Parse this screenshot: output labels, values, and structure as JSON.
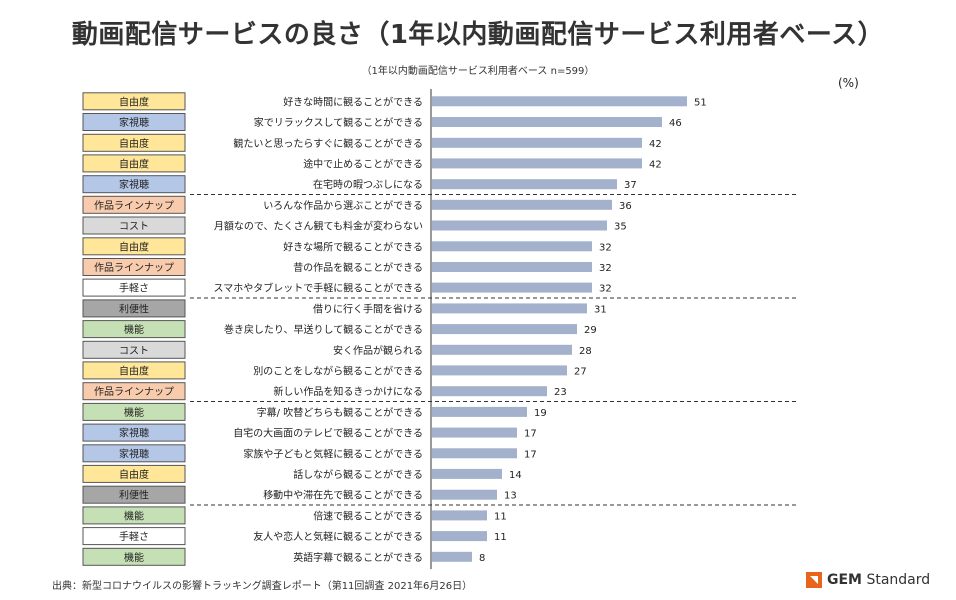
{
  "header": {
    "title": "動画配信サービスの良さ（1年以内動画配信サービス利用者ベース）",
    "subtitle": "（1年以内動画配信サービス利用者ベース n=599）",
    "unit": "(%)"
  },
  "footer": {
    "source": "出典：新型コロナウイルスの影響トラッキング調査レポート（第11回調査 2021年6月26日）",
    "logo_bold": "GEM",
    "logo_rest": " Standard"
  },
  "colors": {
    "bar": "#a3b1cd",
    "自由度": "#ffe699",
    "家視聴": "#b4c7e7",
    "作品ラインナップ": "#f8cbad",
    "コスト": "#d9d9d9",
    "手軽さ": "#ffffff",
    "利便性": "#a6a6a6",
    "機能": "#c5e0b4"
  },
  "chart_data": {
    "type": "bar",
    "orientation": "horizontal",
    "unit": "%",
    "xlim": [
      0,
      60
    ],
    "grid": false,
    "rows": [
      {
        "category": "自由度",
        "label": "好きな時間に観ることができる",
        "value": 51
      },
      {
        "category": "家視聴",
        "label": "家でリラックスして観ることができる",
        "value": 46
      },
      {
        "category": "自由度",
        "label": "観たいと思ったらすぐに観ることができる",
        "value": 42
      },
      {
        "category": "自由度",
        "label": "途中で止めることができる",
        "value": 42
      },
      {
        "category": "家視聴",
        "label": "在宅時の暇つぶしになる",
        "value": 37
      },
      {
        "category": "作品ラインナップ",
        "label": "いろんな作品から選ぶことができる",
        "value": 36
      },
      {
        "category": "コスト",
        "label": "月額なので、たくさん観ても料金が変わらない",
        "value": 35
      },
      {
        "category": "自由度",
        "label": "好きな場所で観ることができる",
        "value": 32
      },
      {
        "category": "作品ラインナップ",
        "label": "昔の作品を観ることができる",
        "value": 32
      },
      {
        "category": "手軽さ",
        "label": "スマホやタブレットで手軽に観ることができる",
        "value": 32
      },
      {
        "category": "利便性",
        "label": "借りに行く手間を省ける",
        "value": 31
      },
      {
        "category": "機能",
        "label": "巻き戻したり、早送りして観ることができる",
        "value": 29
      },
      {
        "category": "コスト",
        "label": "安く作品が観られる",
        "value": 28
      },
      {
        "category": "自由度",
        "label": "別のことをしながら観ることができる",
        "value": 27
      },
      {
        "category": "作品ラインナップ",
        "label": "新しい作品を知るきっかけになる",
        "value": 23
      },
      {
        "category": "機能",
        "label": "字幕/ 吹替どちらも観ることができる",
        "value": 19
      },
      {
        "category": "家視聴",
        "label": "自宅の大画面のテレビで観ることができる",
        "value": 17
      },
      {
        "category": "家視聴",
        "label": "家族や子どもと気軽に観ることができる",
        "value": 17
      },
      {
        "category": "自由度",
        "label": "話しながら観ることができる",
        "value": 14
      },
      {
        "category": "利便性",
        "label": "移動中や滞在先で観ることができる",
        "value": 13
      },
      {
        "category": "機能",
        "label": "倍速で観ることができる",
        "value": 11
      },
      {
        "category": "手軽さ",
        "label": "友人や恋人と気軽に観ることができる",
        "value": 11
      },
      {
        "category": "機能",
        "label": "英語字幕で観ることができる",
        "value": 8
      }
    ],
    "dividers_after_rows": [
      4,
      9,
      14,
      19
    ]
  }
}
